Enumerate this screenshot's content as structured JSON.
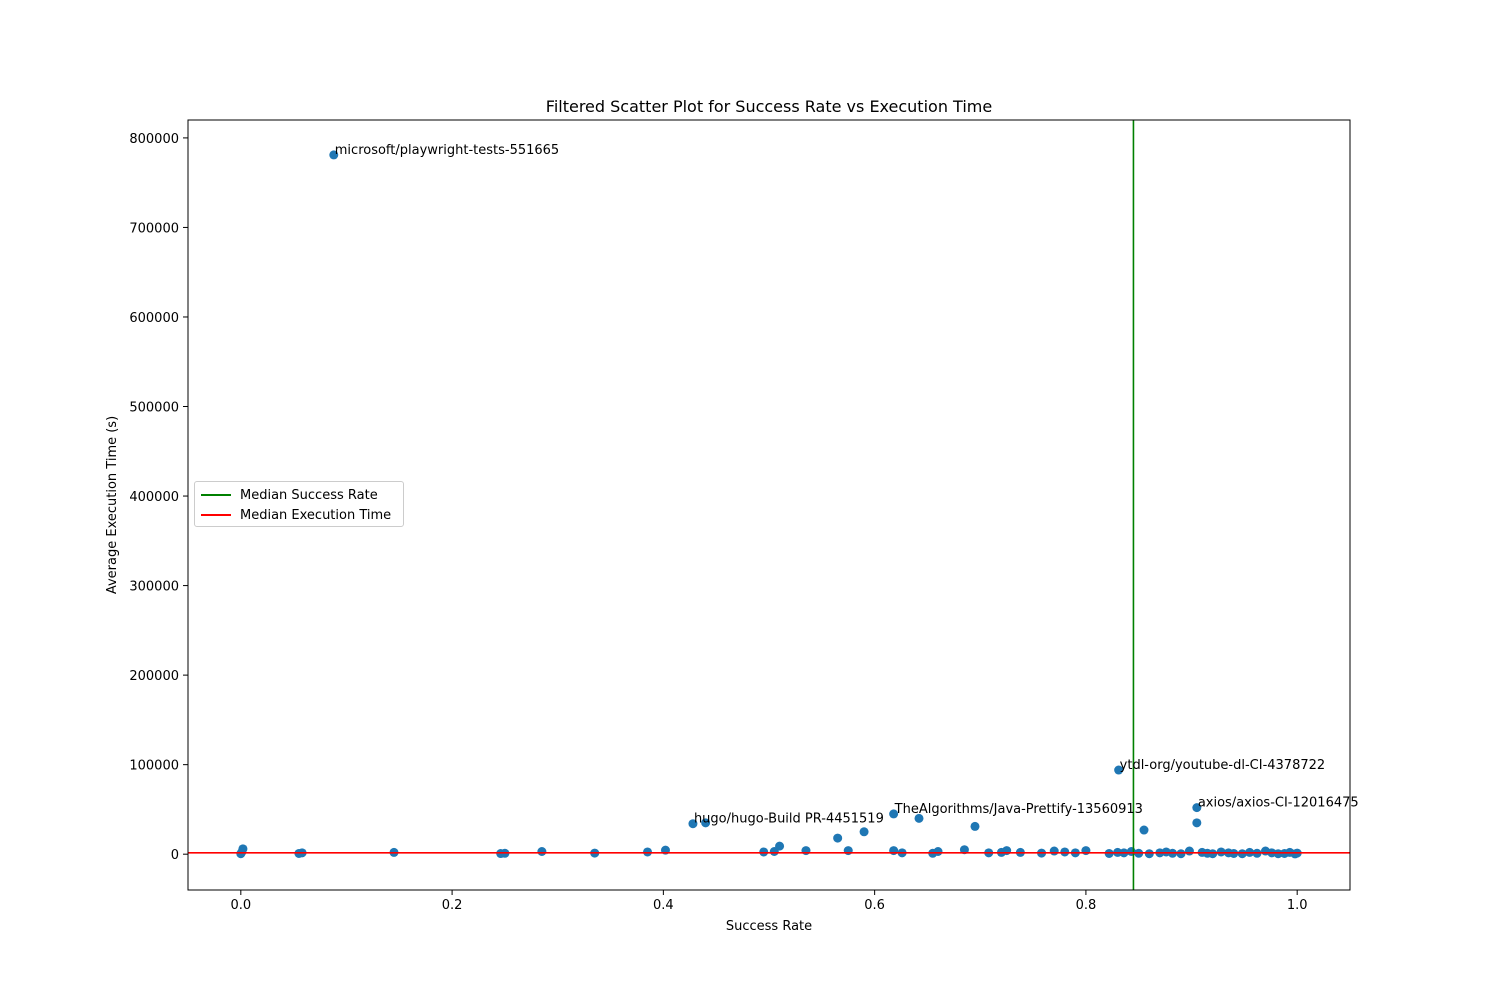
{
  "chart_data": {
    "type": "scatter",
    "title": "Filtered Scatter Plot for Success Rate vs Execution Time",
    "xlabel": "Success Rate",
    "ylabel": "Average Execution Time (s)",
    "xlim": [
      -0.05,
      1.05
    ],
    "ylim": [
      -40000,
      820000
    ],
    "xticks": [
      "0.0",
      "0.2",
      "0.4",
      "0.6",
      "0.8",
      "1.0"
    ],
    "xtick_values": [
      0.0,
      0.2,
      0.4,
      0.6,
      0.8,
      1.0
    ],
    "yticks": [
      "0",
      "100000",
      "200000",
      "300000",
      "400000",
      "500000",
      "600000",
      "700000",
      "800000"
    ],
    "ytick_values": [
      0,
      100000,
      200000,
      300000,
      400000,
      500000,
      600000,
      700000,
      800000
    ],
    "grid": false,
    "marker_color": "#1f77b4",
    "legend": {
      "placement": "center-left",
      "entries": [
        {
          "label": "Median Success Rate",
          "color": "#008000"
        },
        {
          "label": "Median Execution Time",
          "color": "#ff0000"
        }
      ]
    },
    "median_success_rate": 0.845,
    "median_execution_time": 1500,
    "labeled_points": [
      {
        "x": 0.088,
        "y": 781000,
        "label": "microsoft/playwright-tests-551665"
      },
      {
        "x": 0.831,
        "y": 94000,
        "label": "ytdl-org/youtube-dl-CI-4378722"
      },
      {
        "x": 0.905,
        "y": 52000,
        "label": "axios/axios-CI-12016475"
      },
      {
        "x": 0.618,
        "y": 45000,
        "label": "TheAlgorithms/Java-Prettify-13560913"
      },
      {
        "x": 0.428,
        "y": 34000,
        "label": "hugo/hugo-Build PR-4451519"
      }
    ],
    "points": [
      {
        "x": 0.0,
        "y": 500
      },
      {
        "x": 0.001,
        "y": 2500
      },
      {
        "x": 0.002,
        "y": 6000
      },
      {
        "x": 0.055,
        "y": 800
      },
      {
        "x": 0.058,
        "y": 1500
      },
      {
        "x": 0.145,
        "y": 2000
      },
      {
        "x": 0.246,
        "y": 700
      },
      {
        "x": 0.25,
        "y": 1000
      },
      {
        "x": 0.285,
        "y": 3000
      },
      {
        "x": 0.335,
        "y": 1200
      },
      {
        "x": 0.385,
        "y": 2500
      },
      {
        "x": 0.402,
        "y": 4500
      },
      {
        "x": 0.44,
        "y": 35000
      },
      {
        "x": 0.495,
        "y": 2500
      },
      {
        "x": 0.505,
        "y": 3000
      },
      {
        "x": 0.51,
        "y": 9000
      },
      {
        "x": 0.535,
        "y": 4000
      },
      {
        "x": 0.565,
        "y": 18000
      },
      {
        "x": 0.575,
        "y": 4000
      },
      {
        "x": 0.59,
        "y": 25000
      },
      {
        "x": 0.618,
        "y": 4000
      },
      {
        "x": 0.626,
        "y": 1500
      },
      {
        "x": 0.642,
        "y": 40000
      },
      {
        "x": 0.655,
        "y": 1000
      },
      {
        "x": 0.66,
        "y": 3000
      },
      {
        "x": 0.685,
        "y": 5000
      },
      {
        "x": 0.695,
        "y": 31000
      },
      {
        "x": 0.708,
        "y": 1500
      },
      {
        "x": 0.72,
        "y": 2000
      },
      {
        "x": 0.725,
        "y": 4000
      },
      {
        "x": 0.738,
        "y": 2000
      },
      {
        "x": 0.758,
        "y": 1200
      },
      {
        "x": 0.77,
        "y": 3500
      },
      {
        "x": 0.78,
        "y": 2500
      },
      {
        "x": 0.79,
        "y": 1500
      },
      {
        "x": 0.8,
        "y": 4000
      },
      {
        "x": 0.822,
        "y": 800
      },
      {
        "x": 0.83,
        "y": 2000
      },
      {
        "x": 0.836,
        "y": 1500
      },
      {
        "x": 0.843,
        "y": 3000
      },
      {
        "x": 0.85,
        "y": 1000
      },
      {
        "x": 0.855,
        "y": 27000
      },
      {
        "x": 0.86,
        "y": 500
      },
      {
        "x": 0.87,
        "y": 1500
      },
      {
        "x": 0.876,
        "y": 2500
      },
      {
        "x": 0.882,
        "y": 1000
      },
      {
        "x": 0.89,
        "y": 500
      },
      {
        "x": 0.898,
        "y": 3500
      },
      {
        "x": 0.905,
        "y": 35000
      },
      {
        "x": 0.91,
        "y": 2000
      },
      {
        "x": 0.915,
        "y": 1000
      },
      {
        "x": 0.92,
        "y": 500
      },
      {
        "x": 0.928,
        "y": 2500
      },
      {
        "x": 0.935,
        "y": 1500
      },
      {
        "x": 0.94,
        "y": 800
      },
      {
        "x": 0.948,
        "y": 500
      },
      {
        "x": 0.955,
        "y": 2000
      },
      {
        "x": 0.962,
        "y": 1000
      },
      {
        "x": 0.97,
        "y": 3500
      },
      {
        "x": 0.976,
        "y": 1500
      },
      {
        "x": 0.982,
        "y": 500
      },
      {
        "x": 0.988,
        "y": 800
      },
      {
        "x": 0.993,
        "y": 2000
      },
      {
        "x": 0.998,
        "y": 300
      },
      {
        "x": 1.0,
        "y": 1200
      }
    ]
  }
}
